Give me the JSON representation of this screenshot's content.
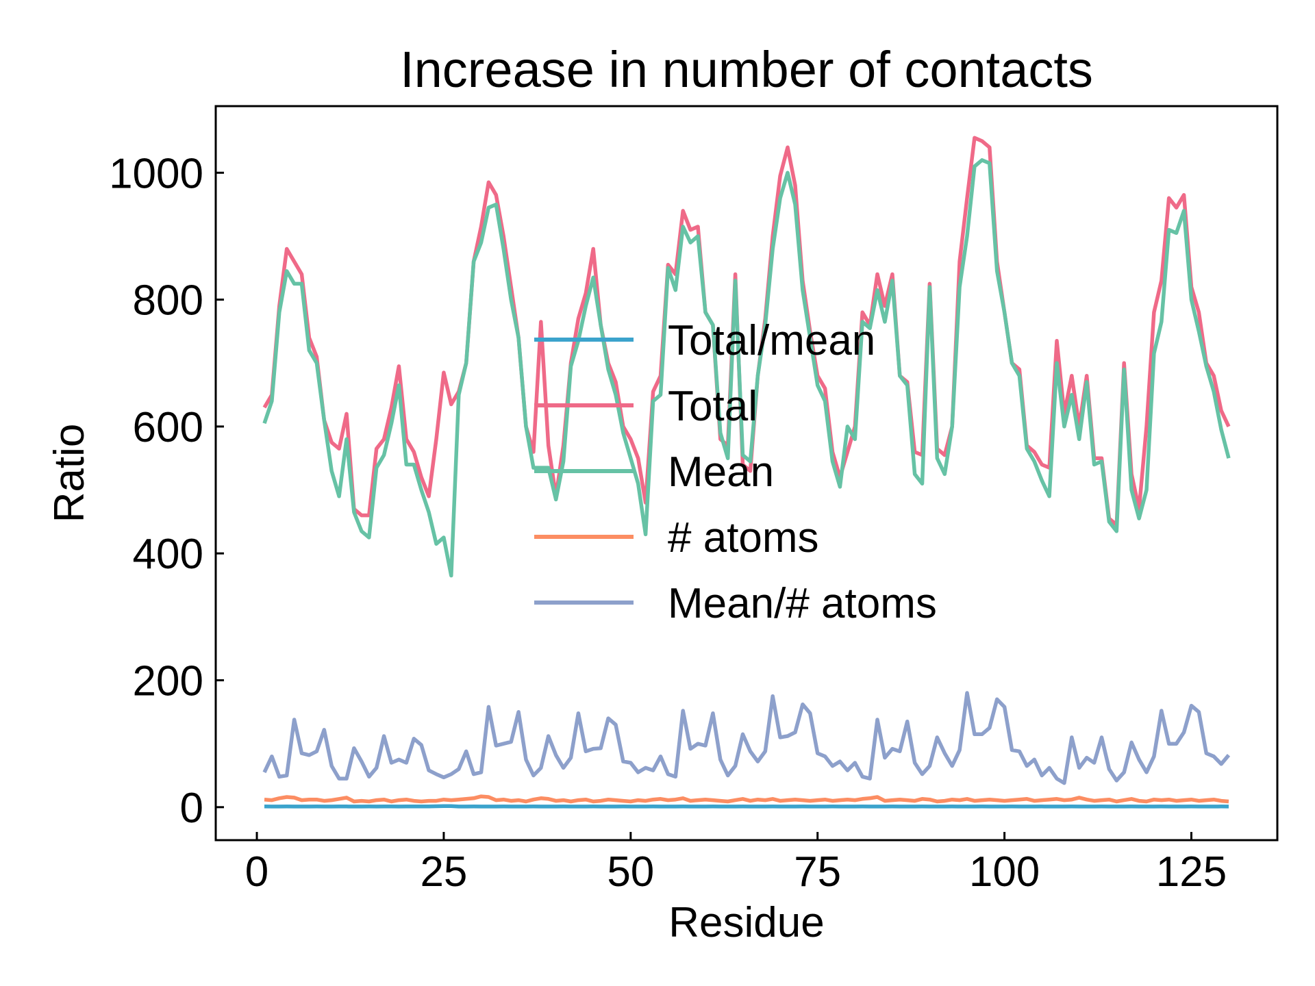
{
  "chart_data": {
    "type": "line",
    "title": "Increase in number of contacts",
    "xlabel": "Residue",
    "ylabel": "Ratio",
    "xlim": [
      -5.5,
      136.5
    ],
    "ylim": [
      -52,
      1105
    ],
    "xticks": [
      0,
      25,
      50,
      75,
      100,
      125
    ],
    "yticks": [
      0,
      200,
      400,
      600,
      800,
      1000
    ],
    "xtick_labels": [
      "0",
      "25",
      "50",
      "75",
      "100",
      "125"
    ],
    "ytick_labels": [
      "0",
      "200",
      "400",
      "600",
      "800",
      "1000"
    ],
    "legend_position": "center",
    "x_start": 1,
    "series": [
      {
        "name": "Total/mean",
        "color": "#3ba3cc",
        "values": [
          1.05,
          1.03,
          1.04,
          1.05,
          1.04,
          1.03,
          1.04,
          1.05,
          1.04,
          1.03,
          1.06,
          1.05,
          1.04,
          1.03,
          1.05,
          1.04,
          1.06,
          1.05,
          1.04,
          1.05,
          1.06,
          1.07,
          1.09,
          1.4,
          1.6,
          1.8,
          1.04,
          1.03,
          1.05,
          1.04,
          1.03,
          1.04,
          1.05,
          1.04,
          1.03,
          1.04,
          1.05,
          1.04,
          1.03,
          1.04,
          1.05,
          1.04,
          1.03,
          1.04,
          1.05,
          1.04,
          1.03,
          1.04,
          1.05,
          1.04,
          1.03,
          1.04,
          1.05,
          1.04,
          1.03,
          1.04,
          1.05,
          1.04,
          1.03,
          1.04,
          1.05,
          1.04,
          1.03,
          1.04,
          1.05,
          1.04,
          1.03,
          1.04,
          1.05,
          1.04,
          1.03,
          1.04,
          1.05,
          1.04,
          1.03,
          1.04,
          1.05,
          1.04,
          1.03,
          1.04,
          1.05,
          1.04,
          1.03,
          1.04,
          1.05,
          1.04,
          1.03,
          1.04,
          1.05,
          1.04,
          1.03,
          1.04,
          1.05,
          1.04,
          1.03,
          1.04,
          1.05,
          1.04,
          1.03,
          1.04,
          1.05,
          1.04,
          1.03,
          1.04,
          1.05,
          1.04,
          1.03,
          1.04,
          1.05,
          1.04,
          1.03,
          1.04,
          1.05,
          1.04,
          1.03,
          1.04,
          1.05,
          1.04,
          1.03,
          1.04,
          1.05,
          1.04,
          1.03,
          1.04,
          1.05,
          1.04,
          1.03,
          1.04,
          1.05,
          1.04
        ]
      },
      {
        "name": "Total",
        "color": "#ef6a88",
        "values": [
          630,
          650,
          790,
          880,
          860,
          840,
          740,
          710,
          610,
          575,
          565,
          620,
          470,
          460,
          460,
          565,
          580,
          630,
          695,
          580,
          560,
          520,
          490,
          580,
          685,
          635,
          655,
          700,
          860,
          915,
          985,
          965,
          900,
          820,
          740,
          600,
          560,
          765,
          570,
          490,
          570,
          700,
          770,
          810,
          880,
          760,
          700,
          670,
          600,
          580,
          550,
          480,
          655,
          680,
          855,
          840,
          940,
          910,
          915,
          780,
          760,
          580,
          570,
          840,
          540,
          530,
          680,
          770,
          900,
          995,
          1040,
          980,
          830,
          750,
          680,
          660,
          560,
          520,
          560,
          600,
          780,
          760,
          840,
          790,
          840,
          680,
          670,
          560,
          555,
          825,
          565,
          555,
          600,
          860,
          960,
          1055,
          1050,
          1040,
          860,
          780,
          700,
          690,
          570,
          560,
          540,
          535,
          735,
          620,
          680,
          600,
          680,
          550,
          550,
          455,
          445,
          700,
          525,
          470,
          600,
          780,
          830,
          960,
          945,
          965,
          820,
          780,
          700,
          680,
          625,
          600
        ]
      },
      {
        "name": "Mean",
        "color": "#66c2a5",
        "values": [
          605,
          640,
          780,
          845,
          825,
          825,
          720,
          700,
          610,
          530,
          490,
          580,
          465,
          435,
          425,
          535,
          555,
          605,
          665,
          540,
          540,
          500,
          465,
          415,
          425,
          365,
          650,
          700,
          860,
          890,
          945,
          950,
          880,
          800,
          740,
          600,
          535,
          535,
          535,
          485,
          545,
          695,
          735,
          790,
          835,
          760,
          690,
          650,
          590,
          550,
          510,
          430,
          640,
          650,
          850,
          815,
          915,
          890,
          900,
          780,
          760,
          590,
          550,
          830,
          555,
          545,
          680,
          760,
          880,
          960,
          1000,
          950,
          815,
          740,
          665,
          640,
          545,
          505,
          600,
          580,
          765,
          755,
          815,
          765,
          830,
          680,
          665,
          525,
          510,
          820,
          550,
          525,
          600,
          820,
          900,
          1010,
          1020,
          1015,
          845,
          780,
          700,
          680,
          565,
          545,
          515,
          490,
          700,
          600,
          650,
          580,
          670,
          540,
          545,
          450,
          435,
          690,
          500,
          455,
          500,
          715,
          765,
          910,
          905,
          940,
          800,
          750,
          695,
          655,
          595,
          550
        ]
      },
      {
        "name": "# atoms",
        "color": "#fc8d62",
        "values": [
          12,
          11,
          14,
          16,
          15,
          11,
          12,
          12,
          10,
          11,
          13,
          15,
          9,
          10,
          9,
          11,
          12,
          9,
          11,
          12,
          10,
          9,
          10,
          10,
          12,
          11,
          12,
          13,
          14,
          17,
          16,
          11,
          12,
          10,
          11,
          9,
          12,
          14,
          13,
          10,
          11,
          9,
          11,
          12,
          9,
          10,
          12,
          11,
          10,
          9,
          11,
          10,
          12,
          13,
          11,
          12,
          14,
          10,
          11,
          12,
          11,
          10,
          9,
          11,
          13,
          10,
          12,
          11,
          13,
          10,
          11,
          12,
          11,
          10,
          11,
          12,
          10,
          11,
          12,
          11,
          13,
          14,
          16,
          10,
          11,
          12,
          11,
          10,
          13,
          12,
          9,
          10,
          12,
          11,
          13,
          10,
          11,
          12,
          11,
          10,
          11,
          12,
          13,
          10,
          11,
          12,
          13,
          11,
          12,
          15,
          12,
          10,
          11,
          12,
          9,
          11,
          13,
          10,
          9,
          12,
          11,
          12,
          10,
          11,
          12,
          10,
          11,
          12,
          10,
          9
        ]
      },
      {
        "name": "Mean/# atoms",
        "color": "#8da0cb",
        "values": [
          55,
          80,
          48,
          50,
          138,
          85,
          82,
          88,
          122,
          65,
          45,
          45,
          93,
          72,
          48,
          62,
          112,
          70,
          75,
          70,
          108,
          98,
          58,
          52,
          47,
          52,
          60,
          88,
          52,
          55,
          158,
          97,
          100,
          103,
          150,
          75,
          50,
          62,
          112,
          82,
          62,
          78,
          148,
          88,
          92,
          93,
          140,
          130,
          72,
          70,
          55,
          62,
          58,
          80,
          52,
          48,
          152,
          92,
          100,
          97,
          148,
          75,
          50,
          65,
          115,
          88,
          72,
          88,
          175,
          110,
          112,
          118,
          162,
          148,
          85,
          80,
          65,
          72,
          58,
          70,
          48,
          45,
          138,
          78,
          92,
          88,
          135,
          70,
          52,
          65,
          110,
          85,
          65,
          90,
          180,
          115,
          115,
          125,
          170,
          158,
          90,
          88,
          65,
          75,
          50,
          62,
          45,
          38,
          110,
          62,
          78,
          70,
          110,
          60,
          42,
          55,
          102,
          75,
          55,
          80,
          152,
          100,
          100,
          118,
          160,
          150,
          85,
          80,
          68,
          82
        ]
      }
    ]
  }
}
